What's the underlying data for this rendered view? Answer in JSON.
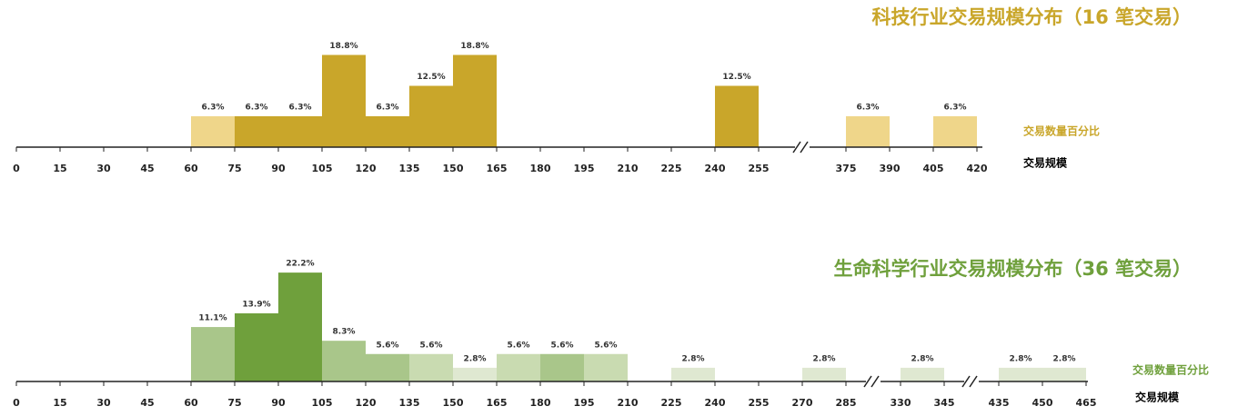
{
  "chart_data": [
    {
      "type": "histogram",
      "title": "科技行业交易规模分布（16 笔交易）",
      "y_label": "交易数量百分比",
      "x_label": "交易规模",
      "color": "#c9a62a",
      "xticks": [
        0,
        15,
        30,
        45,
        60,
        75,
        90,
        105,
        120,
        135,
        150,
        165,
        180,
        195,
        210,
        225,
        240,
        255,
        375,
        390,
        405,
        420
      ],
      "bars": [
        {
          "from": 60,
          "to": 75,
          "value": 6.3,
          "value_label": "6.3%",
          "color": "#efd68a"
        },
        {
          "from": 75,
          "to": 90,
          "value": 6.3,
          "value_label": "6.3%",
          "color": "#c9a62a"
        },
        {
          "from": 90,
          "to": 105,
          "value": 6.3,
          "value_label": "6.3%",
          "color": "#c9a62a"
        },
        {
          "from": 105,
          "to": 120,
          "value": 18.8,
          "value_label": "18.8%",
          "color": "#c9a62a"
        },
        {
          "from": 120,
          "to": 135,
          "value": 6.3,
          "value_label": "6.3%",
          "color": "#c9a62a"
        },
        {
          "from": 135,
          "to": 150,
          "value": 12.5,
          "value_label": "12.5%",
          "color": "#c9a62a"
        },
        {
          "from": 150,
          "to": 165,
          "value": 18.8,
          "value_label": "18.8%",
          "color": "#c9a62a"
        },
        {
          "from": 240,
          "to": 255,
          "value": 12.5,
          "value_label": "12.5%",
          "color": "#c9a62a"
        },
        {
          "from": 375,
          "to": 390,
          "value": 6.3,
          "value_label": "6.3%",
          "color": "#efd68a"
        },
        {
          "from": 405,
          "to": 420,
          "value": 6.3,
          "value_label": "6.3%",
          "color": "#efd68a"
        }
      ]
    },
    {
      "type": "histogram",
      "title": "生命科学行业交易规模分布（36 笔交易）",
      "y_label": "交易数量百分比",
      "x_label": "交易规模",
      "color": "#6fa03c",
      "xticks": [
        0,
        15,
        30,
        45,
        60,
        75,
        90,
        105,
        120,
        135,
        150,
        165,
        180,
        195,
        210,
        225,
        240,
        255,
        270,
        285,
        330,
        345,
        435,
        450,
        465
      ],
      "bars": [
        {
          "from": 60,
          "to": 75,
          "value": 11.1,
          "value_label": "11.1%",
          "color": "#a9c68a"
        },
        {
          "from": 75,
          "to": 90,
          "value": 13.9,
          "value_label": "13.9%",
          "color": "#6fa03c"
        },
        {
          "from": 90,
          "to": 105,
          "value": 22.2,
          "value_label": "22.2%",
          "color": "#6fa03c"
        },
        {
          "from": 105,
          "to": 120,
          "value": 8.3,
          "value_label": "8.3%",
          "color": "#a9c68a"
        },
        {
          "from": 120,
          "to": 135,
          "value": 5.6,
          "value_label": "5.6%",
          "color": "#a9c68a"
        },
        {
          "from": 135,
          "to": 150,
          "value": 5.6,
          "value_label": "5.6%",
          "color": "#c9dbb1"
        },
        {
          "from": 150,
          "to": 165,
          "value": 2.8,
          "value_label": "2.8%",
          "color": "#dfe8d1"
        },
        {
          "from": 165,
          "to": 180,
          "value": 5.6,
          "value_label": "5.6%",
          "color": "#c9dbb1"
        },
        {
          "from": 180,
          "to": 195,
          "value": 5.6,
          "value_label": "5.6%",
          "color": "#a9c68a"
        },
        {
          "from": 195,
          "to": 210,
          "value": 5.6,
          "value_label": "5.6%",
          "color": "#c9dbb1"
        },
        {
          "from": 225,
          "to": 240,
          "value": 2.8,
          "value_label": "2.8%",
          "color": "#dfe8d1"
        },
        {
          "from": 270,
          "to": 285,
          "value": 2.8,
          "value_label": "2.8%",
          "color": "#dfe8d1"
        },
        {
          "from": 330,
          "to": 345,
          "value": 2.8,
          "value_label": "2.8%",
          "color": "#dfe8d1"
        },
        {
          "from": 435,
          "to": 450,
          "value": 2.8,
          "value_label": "2.8%",
          "color": "#dfe8d1"
        },
        {
          "from": 450,
          "to": 465,
          "value": 2.8,
          "value_label": "2.8%",
          "color": "#dfe8d1"
        }
      ]
    }
  ]
}
